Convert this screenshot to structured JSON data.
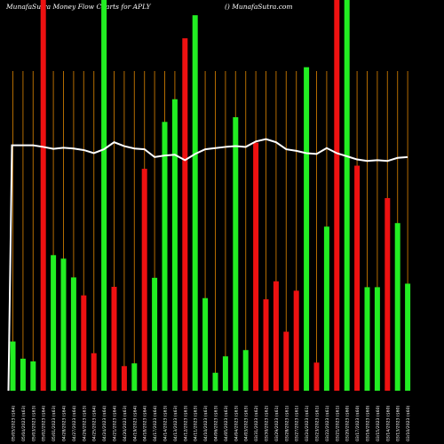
{
  "header": {
    "title": "MunafaSutra  Money Flow  Charts for APLY",
    "site": "() MunafaSutra.com"
  },
  "colors": {
    "background": "#000000",
    "up": "#22ee22",
    "down": "#ee1111",
    "line": "#ffffff",
    "grid": "#b36b00"
  },
  "chart_data": {
    "type": "bar",
    "ylim": [
      0,
      100
    ],
    "grid": "vertical",
    "legend": "none",
    "categories": [
      "05/05/2023 ($64)",
      "05/04/2023 ($63)",
      "05/03/2023 ($63)",
      "05/02/2023 ($64)",
      "05/01/2023 ($63)",
      "04/28/2023 ($64)",
      "04/27/2023 ($64)",
      "04/26/2023 ($63)",
      "04/25/2023 ($64)",
      "04/24/2023 ($64)",
      "04/21/2023 ($64)",
      "04/20/2023 ($63)",
      "04/19/2023 ($64)",
      "04/18/2023 ($64)",
      "04/17/2023 ($64)",
      "04/14/2023 ($63)",
      "04/13/2023 ($63)",
      "04/12/2023 ($63)",
      "04/11/2023 ($63)",
      "04/10/2023 ($63)",
      "04/06/2023 ($63)",
      "04/05/2023 ($63)",
      "04/04/2023 ($63)",
      "04/03/2023 ($63)",
      "03/31/2023 ($62)",
      "03/30/2023 ($62)",
      "03/29/2023 ($61)",
      "03/28/2023 ($61)",
      "03/27/2023 ($61)",
      "03/24/2023 ($61)",
      "03/23/2023 ($61)",
      "03/22/2023 ($61)",
      "03/21/2023 ($61)",
      "03/20/2023 ($60)",
      "03/17/2023 ($60)",
      "03/16/2023 ($60)",
      "03/15/2023 ($60)",
      "03/14/2023 ($60)",
      "03/13/2023 ($60)",
      "03/10/2023 ($60)"
    ],
    "series": [
      {
        "values": [
          12.6,
          8.2,
          7.5,
          100,
          34.7,
          33.8,
          29.0,
          24.4,
          9.6,
          100,
          26.6,
          6.3,
          7.0,
          56.8,
          28.9,
          68.8,
          74.6,
          90.2,
          96.1,
          23.7,
          4.6,
          8.8,
          70.0,
          10.4,
          63.5,
          23.4,
          28.0,
          15.1,
          25.6,
          82.8,
          7.2,
          42.0,
          100,
          100,
          57.6,
          26.5,
          26.5,
          49.3,
          42.9,
          27.4
        ],
        "directions": [
          "up",
          "up",
          "up",
          "down",
          "up",
          "up",
          "up",
          "down",
          "down",
          "up",
          "down",
          "down",
          "up",
          "down",
          "up",
          "up",
          "up",
          "down",
          "up",
          "up",
          "up",
          "up",
          "up",
          "up",
          "down",
          "down",
          "down",
          "down",
          "down",
          "up",
          "down",
          "up",
          "down",
          "up",
          "down",
          "up",
          "up",
          "down",
          "up",
          "up"
        ]
      },
      {
        "type": "line",
        "values": [
          null,
          62.8,
          62.8,
          62.4,
          61.9,
          62.2,
          62.0,
          61.6,
          60.8,
          61.8,
          63.6,
          62.6,
          62.0,
          61.8,
          59.8,
          60.2,
          60.4,
          59.0,
          60.6,
          61.8,
          62.1,
          62.4,
          62.6,
          62.4,
          63.8,
          64.4,
          63.6,
          61.8,
          61.4,
          60.8,
          60.6,
          62.1,
          60.8,
          60.0,
          59.2,
          58.8,
          59.0,
          58.8,
          59.6,
          59.8
        ]
      }
    ]
  }
}
